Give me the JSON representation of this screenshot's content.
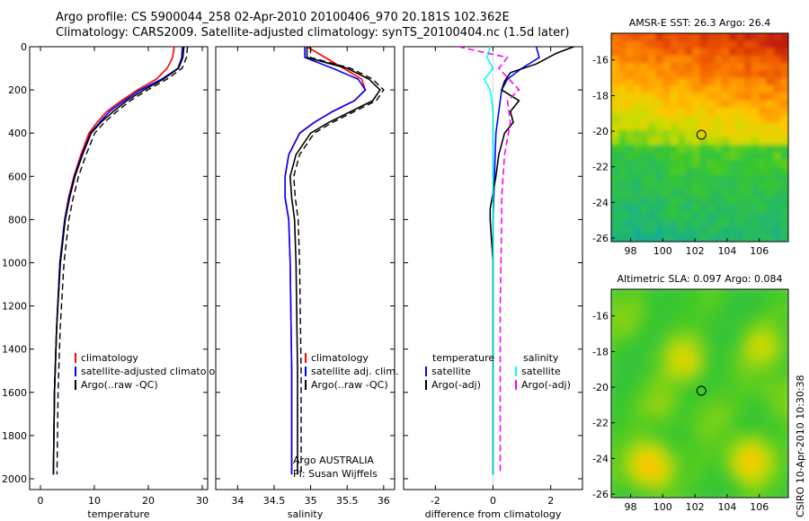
{
  "header": {
    "line1": "Argo profile: CS 5900044_258 02-Apr-2010 20100406_970 20.181S 102.362E",
    "line2": "Climatology: CARS2009. Satellite-adjusted climatology: synTS_20100404.nc (1.5d later)"
  },
  "side_label": "CSIRO 10-Apr-2010 10:30:38",
  "credit": [
    "Argo AUSTRALIA",
    "PI: Susan Wijffels"
  ],
  "colors": {
    "climatology": "#ff0000",
    "satellite": "#0000ff",
    "argo": "#000000",
    "sat_diff": "#00ffff",
    "argo_diff": "#ff00ff"
  },
  "chart_data": [
    {
      "type": "line",
      "id": "temperature",
      "title": "",
      "xlabel": "temperature",
      "ylabel": "",
      "xlim": [
        -2,
        31
      ],
      "ylim": [
        0,
        2050
      ],
      "y_reversed": true,
      "xticks": [
        0,
        10,
        20,
        30
      ],
      "yticks": [
        0,
        200,
        400,
        600,
        800,
        1000,
        1200,
        1400,
        1600,
        1800,
        2000
      ],
      "legend": {
        "placement": "bottom-right",
        "entries": [
          "climatology",
          "satellite-adjusted climatology",
          "Argo(..raw -QC)"
        ]
      },
      "series": [
        {
          "name": "climatology",
          "color": "#ff0000",
          "x": [
            24.8,
            24.5,
            23.5,
            21.5,
            18.0,
            15.0,
            12.3,
            10.5,
            9.0,
            7.5,
            6.2,
            5.2,
            4.5,
            3.6,
            3.0,
            2.6,
            2.4
          ],
          "y": [
            0,
            50,
            100,
            150,
            200,
            250,
            300,
            350,
            400,
            500,
            600,
            700,
            800,
            1000,
            1300,
            1600,
            1980
          ]
        },
        {
          "name": "satellite-adjusted climatology",
          "color": "#0000ff",
          "x": [
            26.3,
            26.2,
            25.5,
            22.5,
            18.5,
            15.5,
            12.8,
            11.0,
            9.3,
            7.7,
            6.3,
            5.3,
            4.5,
            3.6,
            3.0,
            2.6,
            2.4
          ],
          "y": [
            0,
            50,
            100,
            150,
            200,
            250,
            300,
            350,
            400,
            500,
            600,
            700,
            800,
            1000,
            1300,
            1600,
            1980
          ]
        },
        {
          "name": "Argo(..raw -QC)",
          "color": "#000000",
          "x": [
            26.6,
            26.4,
            25.6,
            22.8,
            19.2,
            16.0,
            13.5,
            11.2,
            9.4,
            7.8,
            6.4,
            5.4,
            4.6,
            3.7,
            3.0,
            2.6,
            2.4
          ],
          "y": [
            0,
            50,
            100,
            150,
            200,
            250,
            300,
            350,
            400,
            500,
            600,
            700,
            800,
            1000,
            1300,
            1600,
            1980
          ]
        }
      ]
    },
    {
      "type": "line",
      "id": "salinity",
      "title": "",
      "xlabel": "salinity",
      "ylabel": "",
      "xlim": [
        33.7,
        36.15
      ],
      "ylim": [
        0,
        2050
      ],
      "y_reversed": true,
      "xticks": [
        34,
        34.5,
        35,
        35.5,
        36
      ],
      "xticklabels": [
        "34",
        "34.5",
        "35",
        "35.5",
        "36"
      ],
      "legend": {
        "placement": "bottom-right",
        "entries": [
          "climatology",
          "satellite adj. clim.",
          "Argo(..raw -QC)"
        ]
      },
      "series": [
        {
          "name": "climatology",
          "color": "#ff0000",
          "x": [
            34.95,
            35.2,
            35.45,
            35.7,
            35.75,
            35.6,
            35.3,
            35.05,
            34.85,
            34.7,
            34.65,
            34.65,
            34.7,
            34.72,
            34.74,
            34.74
          ],
          "y": [
            0,
            50,
            100,
            150,
            200,
            250,
            300,
            350,
            400,
            500,
            600,
            700,
            800,
            1000,
            1500,
            1980
          ]
        },
        {
          "name": "satellite adj. clim.",
          "color": "#0000ff",
          "x": [
            34.92,
            34.92,
            35.3,
            35.65,
            35.75,
            35.6,
            35.3,
            35.05,
            34.85,
            34.7,
            34.65,
            34.65,
            34.7,
            34.72,
            34.74,
            34.74
          ],
          "y": [
            0,
            50,
            100,
            150,
            200,
            250,
            300,
            350,
            400,
            500,
            600,
            700,
            800,
            1000,
            1500,
            1980
          ]
        },
        {
          "name": "Argo(..raw -QC)",
          "color": "#000000",
          "x": [
            34.95,
            34.95,
            35.5,
            35.8,
            35.95,
            35.85,
            35.55,
            35.25,
            35.0,
            34.8,
            34.72,
            34.74,
            34.78,
            34.8,
            34.82,
            34.82
          ],
          "y": [
            0,
            50,
            100,
            150,
            200,
            250,
            300,
            350,
            400,
            500,
            600,
            700,
            800,
            1000,
            1500,
            1980
          ]
        }
      ]
    },
    {
      "type": "line",
      "id": "difference",
      "title": "",
      "xlabel": "difference from climatology",
      "ylabel": "",
      "xlim": [
        -3.1,
        3.1
      ],
      "ylim": [
        0,
        2050
      ],
      "y_reversed": true,
      "xticks": [
        -2,
        0,
        2
      ],
      "legend": {
        "placement": "bottom",
        "temperature": [
          "temperature",
          "satellite",
          "Argo(-adj)"
        ],
        "salinity": [
          "salinity",
          "satellite",
          "Argo(-adj)"
        ]
      },
      "series": [
        {
          "name": "temperature satellite",
          "color": "#0000ff",
          "dash": false,
          "x": [
            1.5,
            1.6,
            1.0,
            0.5,
            0.3,
            0.2,
            0.1,
            0.05,
            0.0,
            0.0,
            0.0
          ],
          "y": [
            0,
            50,
            100,
            150,
            200,
            300,
            400,
            600,
            800,
            1200,
            1980
          ]
        },
        {
          "name": "temperature Argo(-adj)",
          "color": "#000000",
          "dash": false,
          "x": [
            2.8,
            2.2,
            1.5,
            0.6,
            0.4,
            0.3,
            0.9,
            0.6,
            0.7,
            0.4,
            0.2,
            0.1,
            -0.1,
            -0.1,
            0.0,
            0.0
          ],
          "y": [
            0,
            30,
            80,
            120,
            160,
            200,
            250,
            300,
            350,
            400,
            500,
            600,
            750,
            800,
            1000,
            1980
          ]
        },
        {
          "name": "salinity satellite",
          "color": "#00ffff",
          "dash": false,
          "x": [
            -0.1,
            -0.2,
            0.0,
            -0.3,
            -0.1,
            0.0,
            0.0,
            0.0,
            0.0
          ],
          "y": [
            0,
            50,
            100,
            150,
            200,
            300,
            600,
            1000,
            1980
          ]
        },
        {
          "name": "salinity Argo(-adj)",
          "color": "#ff00ff",
          "dash": true,
          "x": [
            -1.2,
            0.5,
            0.2,
            0.9,
            0.5,
            0.6,
            0.4,
            0.3,
            0.3,
            0.25,
            0.25
          ],
          "y": [
            0,
            50,
            100,
            200,
            250,
            350,
            500,
            700,
            800,
            1200,
            1980
          ]
        }
      ]
    },
    {
      "type": "heatmap",
      "id": "sst-map",
      "title": "AMSR-E SST: 26.3 Argo: 26.4",
      "xlabel": "",
      "ylabel": "",
      "xlim": [
        96.8,
        107.8
      ],
      "ylim": [
        -26.2,
        -14.5
      ],
      "xticks": [
        98,
        100,
        102,
        104,
        106
      ],
      "yticks": [
        -16,
        -18,
        -20,
        -22,
        -24,
        -26
      ],
      "marker": {
        "lon": 102.4,
        "lat": -20.2
      }
    },
    {
      "type": "heatmap",
      "id": "sla-map",
      "title": "Altimetric SLA: 0.097 Argo: 0.084",
      "xlabel": "",
      "ylabel": "",
      "xlim": [
        96.8,
        107.8
      ],
      "ylim": [
        -26.2,
        -14.5
      ],
      "xticks": [
        98,
        100,
        102,
        104,
        106
      ],
      "yticks": [
        -16,
        -18,
        -20,
        -22,
        -24,
        -26
      ],
      "marker": {
        "lon": 102.4,
        "lat": -20.2
      }
    }
  ]
}
